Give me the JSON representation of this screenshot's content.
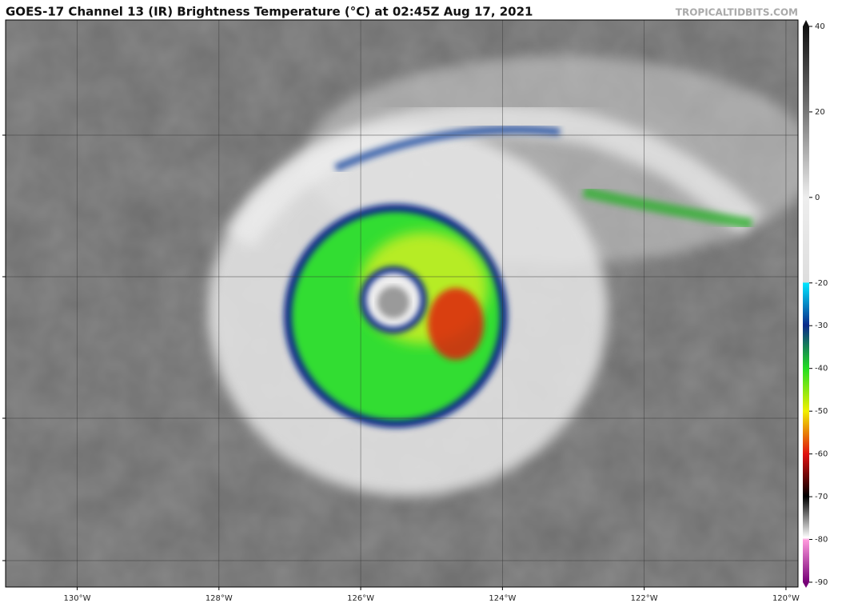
{
  "title": "GOES-17 Channel 13 (IR) Brightness Temperature (°C) at 02:45Z Aug 17, 2021",
  "source": "TROPICALTIDBITS.COM",
  "map": {
    "xlim": [
      -131.01,
      -119.83
    ],
    "xticks": [
      {
        "value": -130,
        "label": "130°W"
      },
      {
        "value": -128,
        "label": "128°W"
      },
      {
        "value": -126,
        "label": "126°W"
      },
      {
        "value": -124,
        "label": "124°W"
      },
      {
        "value": -122,
        "label": "122°W"
      },
      {
        "value": -120,
        "label": "120°W"
      }
    ]
  },
  "colorbar": {
    "lim": [
      -90,
      40
    ],
    "ticks": [
      40,
      20,
      0,
      -20,
      -30,
      -40,
      -50,
      -60,
      -70,
      -80,
      -90
    ]
  }
}
